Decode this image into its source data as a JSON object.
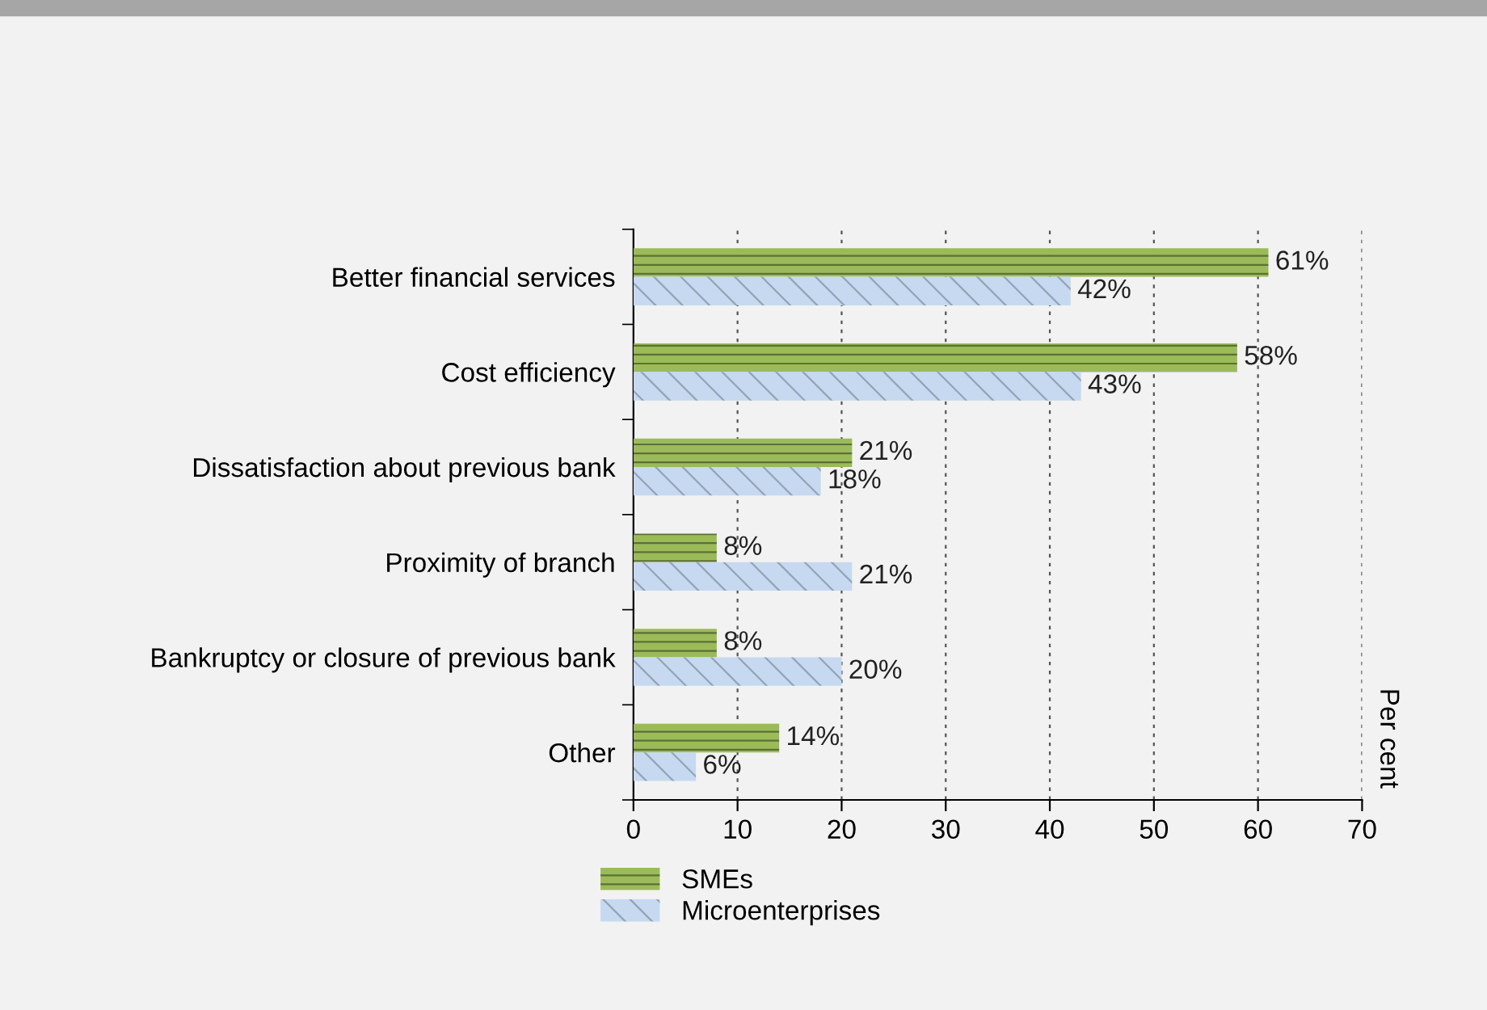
{
  "chart_data": {
    "type": "bar",
    "orientation": "horizontal",
    "categories": [
      "Better financial services",
      "Cost efficiency",
      "Dissatisfaction about previous bank",
      "Proximity of branch",
      "Bankruptcy or closure of previous bank",
      "Other"
    ],
    "series": [
      {
        "name": "SMEs",
        "color": "#9bbb59",
        "values": [
          61,
          58,
          21,
          8,
          8,
          14
        ],
        "value_labels": [
          "61%",
          "58%",
          "21%",
          "8%",
          "8%",
          "14%"
        ]
      },
      {
        "name": "Microenterprises",
        "color": "#c6d9f1",
        "values": [
          42,
          43,
          18,
          21,
          20,
          6
        ],
        "value_labels": [
          "42%",
          "43%",
          "18%",
          "21%",
          "20%",
          "6%"
        ]
      }
    ],
    "annotations": [
      "Per cent"
    ],
    "xlim": [
      0,
      70
    ],
    "xticks": [
      0,
      10,
      20,
      30,
      40,
      50,
      60,
      70
    ],
    "grid": "x",
    "legend": "bottom left"
  }
}
